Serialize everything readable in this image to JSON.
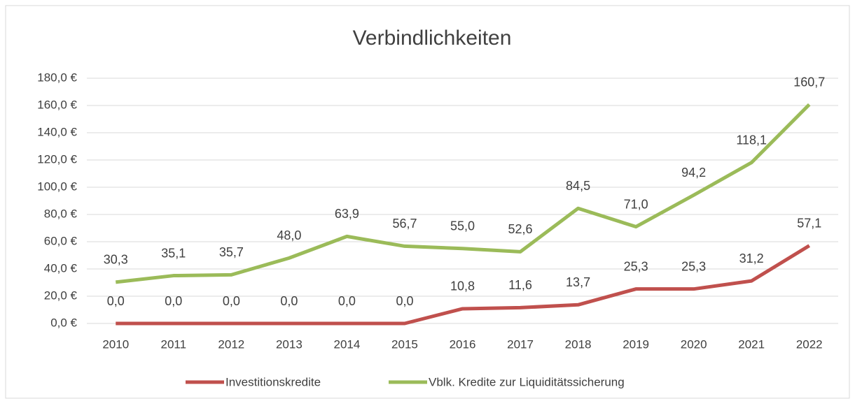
{
  "chart_data": {
    "type": "line",
    "title": "Verbindlichkeiten",
    "categories": [
      "2010",
      "2011",
      "2012",
      "2013",
      "2014",
      "2015",
      "2016",
      "2017",
      "2018",
      "2019",
      "2020",
      "2021",
      "2022"
    ],
    "series": [
      {
        "name": "Investitionskredite",
        "color": "#c0504d",
        "values": [
          0.0,
          0.0,
          0.0,
          0.0,
          0.0,
          0.0,
          10.8,
          11.6,
          13.7,
          25.3,
          25.3,
          31.2,
          57.1
        ],
        "value_labels": [
          "0,0",
          "0,0",
          "0,0",
          "0,0",
          "0,0",
          "0,0",
          "10,8",
          "11,6",
          "13,7",
          "25,3",
          "25,3",
          "31,2",
          "57,1"
        ]
      },
      {
        "name": "Vblk. Kredite zur Liquiditätssicherung",
        "color": "#9bbb59",
        "values": [
          30.3,
          35.1,
          35.7,
          48.0,
          63.9,
          56.7,
          55.0,
          52.6,
          84.5,
          71.0,
          94.2,
          118.1,
          160.7
        ],
        "value_labels": [
          "30,3",
          "35,1",
          "35,7",
          "48,0",
          "63,9",
          "56,7",
          "55,0",
          "52,6",
          "84,5",
          "71,0",
          "94,2",
          "118,1",
          "160,7"
        ]
      }
    ],
    "ylim": [
      0,
      180
    ],
    "yticks": [
      {
        "value": 0,
        "label": "0,0 €"
      },
      {
        "value": 20,
        "label": "20,0 €"
      },
      {
        "value": 40,
        "label": "40,0 €"
      },
      {
        "value": 60,
        "label": "60,0 €"
      },
      {
        "value": 80,
        "label": "80,0 €"
      },
      {
        "value": 100,
        "label": "100,0 €"
      },
      {
        "value": 120,
        "label": "120,0 €"
      },
      {
        "value": 140,
        "label": "140,0 €"
      },
      {
        "value": 160,
        "label": "160,0 €"
      },
      {
        "value": 180,
        "label": "180,0 €"
      }
    ],
    "grid": true,
    "legend": "bottom"
  }
}
